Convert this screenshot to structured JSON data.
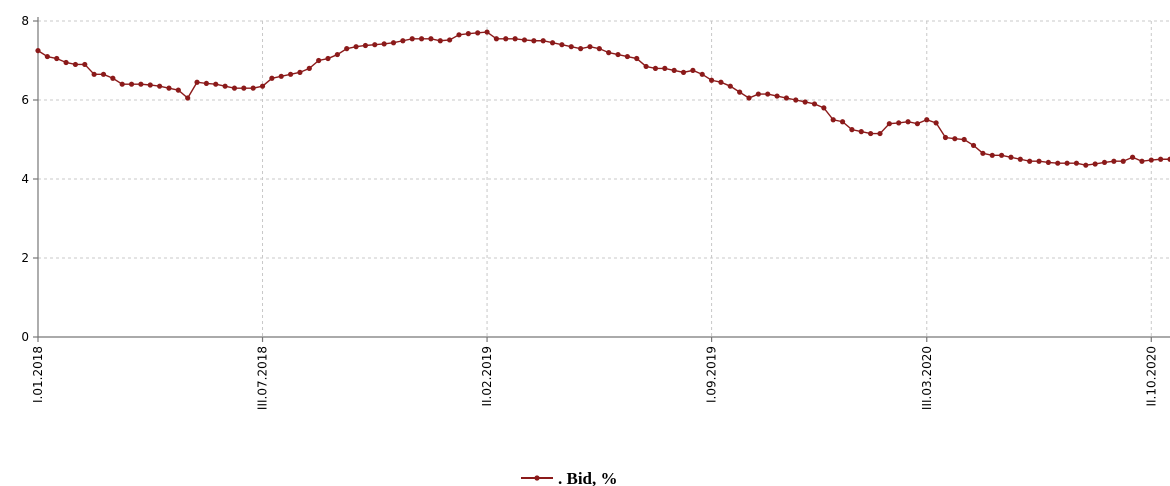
{
  "chart_data": {
    "type": "line",
    "color": "#8b1a1a",
    "ylim": [
      0,
      8
    ],
    "yticks": [
      0,
      2,
      4,
      6,
      8
    ],
    "grid": true,
    "legend_position": "bottom-center",
    "x_tick_labels": [
      {
        "label": "I.01.2018",
        "index": 0
      },
      {
        "label": "III.07.2018",
        "index": 24
      },
      {
        "label": "II.02.2019",
        "index": 48
      },
      {
        "label": "I.09.2019",
        "index": 72
      },
      {
        "label": "III.03.2020",
        "index": 95
      },
      {
        "label": "II.10.2020",
        "index": 119
      }
    ],
    "series": [
      {
        "name": ". Bid, %",
        "values": [
          7.25,
          7.1,
          7.05,
          6.95,
          6.9,
          6.9,
          6.65,
          6.65,
          6.55,
          6.4,
          6.4,
          6.4,
          6.38,
          6.35,
          6.3,
          6.25,
          6.05,
          6.45,
          6.42,
          6.4,
          6.35,
          6.3,
          6.3,
          6.3,
          6.35,
          6.55,
          6.6,
          6.65,
          6.7,
          6.8,
          7.0,
          7.05,
          7.15,
          7.3,
          7.35,
          7.38,
          7.4,
          7.42,
          7.45,
          7.5,
          7.55,
          7.55,
          7.55,
          7.5,
          7.52,
          7.65,
          7.68,
          7.7,
          7.72,
          7.55,
          7.55,
          7.55,
          7.52,
          7.5,
          7.5,
          7.45,
          7.4,
          7.35,
          7.3,
          7.35,
          7.3,
          7.2,
          7.15,
          7.1,
          7.05,
          6.85,
          6.8,
          6.8,
          6.75,
          6.7,
          6.75,
          6.65,
          6.5,
          6.45,
          6.35,
          6.2,
          6.05,
          6.15,
          6.15,
          6.1,
          6.05,
          6.0,
          5.95,
          5.9,
          5.8,
          5.5,
          5.45,
          5.25,
          5.2,
          5.15,
          5.15,
          5.4,
          5.42,
          5.45,
          5.4,
          5.5,
          5.42,
          5.05,
          5.02,
          5.0,
          4.85,
          4.65,
          4.6,
          4.6,
          4.55,
          4.5,
          4.45,
          4.45,
          4.42,
          4.4,
          4.4,
          4.4,
          4.35,
          4.38,
          4.42,
          4.45,
          4.45,
          4.55,
          4.45,
          4.48,
          4.5,
          4.5
        ]
      }
    ]
  }
}
